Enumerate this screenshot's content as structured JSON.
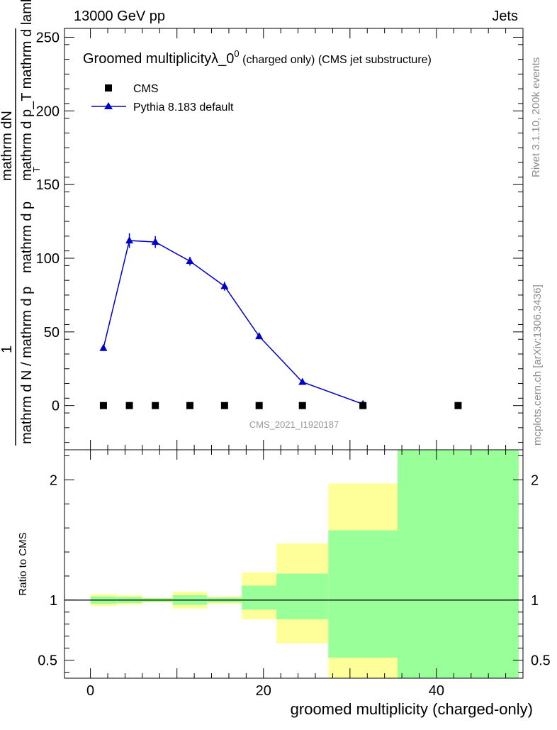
{
  "header": {
    "energy": "13000 GeV pp",
    "category": "Jets"
  },
  "side_labels": {
    "rivet": "Rivet 3.1.10,  200k events",
    "mcplots": "mcplots.cern.ch [arXiv:1306.3436]"
  },
  "watermark": "CMS_2021_I1920187",
  "colors": {
    "mc": "#0000cc",
    "data": "#000000",
    "band_inner": "#99ff99",
    "band_outer": "#ffff99"
  },
  "chart_data": [
    {
      "type": "line",
      "panel": "main",
      "title": {
        "main": "Groomed multiplicityλ_0",
        "sup": "0",
        "small": "(charged only)",
        "tail": "(CMS jet substructure)"
      },
      "ylabel": {
        "numerator": "1",
        "denominator": "mathrm d N / mathrm d p_mathrm d p_T mathrm d lambda",
        "parts": [
          "mathrm dN",
          "mathrm d p_T mathrm d lambda",
          "mathrm d p",
          "mathrm d N / mathrm d p",
          "T"
        ]
      },
      "xlim": [
        -3,
        50
      ],
      "ylim": [
        -30,
        256
      ],
      "yticks": [
        0,
        50,
        100,
        150,
        200,
        250
      ],
      "legend": {
        "position": "top-left",
        "entries": [
          "CMS",
          "Pythia 8.183 default"
        ]
      },
      "series": [
        {
          "name": "CMS",
          "marker": "square",
          "x": [
            1.5,
            4.5,
            7.5,
            11.5,
            15.5,
            19.5,
            24.5,
            31.5,
            42.5
          ],
          "y": [
            0,
            0,
            0,
            0,
            0,
            0,
            0,
            0,
            0
          ]
        },
        {
          "name": "Pythia 8.183 default",
          "marker": "triangle",
          "x": [
            1.5,
            4.5,
            7.5,
            11.5,
            15.5,
            19.5,
            24.5,
            31.5
          ],
          "y": [
            39,
            112,
            111,
            98,
            81,
            47,
            16,
            1
          ],
          "yerr": [
            1.5,
            5,
            4,
            3,
            3,
            2,
            1,
            0.5
          ]
        }
      ]
    },
    {
      "type": "area",
      "panel": "ratio",
      "ylabel": "Ratio to CMS",
      "xlabel": "groomed multiplicity (charged-only)",
      "xlim": [
        -3,
        50
      ],
      "ylim": [
        0.35,
        2.25
      ],
      "yticks": [
        0.5,
        1,
        2
      ],
      "xticks": [
        0,
        20,
        40
      ],
      "bins": [
        {
          "lo": 0,
          "hi": 3,
          "outer": [
            0.95,
            1.05
          ],
          "inner": [
            0.97,
            1.03
          ]
        },
        {
          "lo": 3,
          "hi": 6,
          "outer": [
            0.96,
            1.04
          ],
          "inner": [
            0.975,
            1.025
          ]
        },
        {
          "lo": 6,
          "hi": 9.5,
          "outer": [
            0.98,
            1.02
          ],
          "inner": [
            0.985,
            1.015
          ]
        },
        {
          "lo": 9.5,
          "hi": 13.5,
          "outer": [
            0.93,
            1.07
          ],
          "inner": [
            0.96,
            1.04
          ]
        },
        {
          "lo": 13.5,
          "hi": 17.5,
          "outer": [
            0.97,
            1.03
          ],
          "inner": [
            0.98,
            1.02
          ]
        },
        {
          "lo": 17.5,
          "hi": 21.5,
          "outer": [
            0.84,
            1.23
          ],
          "inner": [
            0.92,
            1.12
          ]
        },
        {
          "lo": 21.5,
          "hi": 27.5,
          "outer": [
            0.64,
            1.47
          ],
          "inner": [
            0.84,
            1.22
          ]
        },
        {
          "lo": 27.5,
          "hi": 35.5,
          "outer": [
            0.35,
            1.97
          ],
          "inner": [
            0.52,
            1.58
          ]
        },
        {
          "lo": 35.5,
          "hi": 49.5,
          "outer": [
            0.35,
            2.25
          ],
          "inner": [
            0.35,
            2.25
          ]
        }
      ]
    }
  ]
}
